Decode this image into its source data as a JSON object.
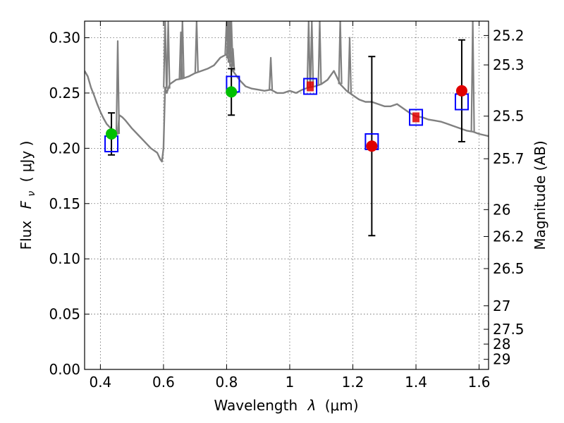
{
  "chart_data": {
    "type": "scatter",
    "title": "",
    "xlabel_text": "Wavelength",
    "xlabel_symbol": "λ",
    "xlabel_unit": "(μm)",
    "ylabel_text": "Flux",
    "ylabel_symbol": "F",
    "ylabel_subscript": "ν",
    "ylabel_unit": "( μJy )",
    "y2label": "Magnitude (AB)",
    "xlim": [
      0.35,
      1.63
    ],
    "ylim": [
      0.0,
      0.315
    ],
    "grid": true,
    "xticks": [
      0.4,
      0.6,
      0.8,
      1.0,
      1.2,
      1.4,
      1.6
    ],
    "xtick_labels": [
      "0.4",
      "0.6",
      "0.8",
      "1",
      "1.2",
      "1.4",
      "1.6"
    ],
    "yticks": [
      0.0,
      0.05,
      0.1,
      0.15,
      0.2,
      0.25,
      0.3
    ],
    "ytick_labels": [
      "0.00",
      "0.05",
      "0.10",
      "0.15",
      "0.20",
      "0.25",
      "0.30"
    ],
    "mag_ticks": [
      25.2,
      25.3,
      25.5,
      25.7,
      26,
      26.2,
      26.5,
      27,
      27.5,
      28,
      29
    ],
    "mag_tick_labels": [
      "25.2",
      "25.3",
      "25.5",
      "25.7",
      "26",
      "26.2",
      "26.5",
      "27",
      "27.5",
      "28",
      "29"
    ],
    "colors": {
      "model": "#808080",
      "model_point_box": "#0000ff",
      "detection": "#00c000",
      "low_significance": "#e00000",
      "errorbar": "#000000"
    },
    "series": [
      {
        "kind": "model_spectrum",
        "style": "line",
        "x": [
          0.35,
          0.36,
          0.37,
          0.38,
          0.39,
          0.4,
          0.41,
          0.42,
          0.43,
          0.44,
          0.45,
          0.455,
          0.46,
          0.47,
          0.48,
          0.5,
          0.52,
          0.54,
          0.56,
          0.58,
          0.59,
          0.595,
          0.6,
          0.605,
          0.61,
          0.62,
          0.64,
          0.66,
          0.68,
          0.7,
          0.72,
          0.74,
          0.76,
          0.78,
          0.8,
          0.82,
          0.84,
          0.86,
          0.88,
          0.9,
          0.92,
          0.94,
          0.96,
          0.98,
          1.0,
          1.02,
          1.04,
          1.06,
          1.08,
          1.1,
          1.12,
          1.14,
          1.16,
          1.18,
          1.2,
          1.22,
          1.24,
          1.26,
          1.28,
          1.3,
          1.32,
          1.34,
          1.36,
          1.38,
          1.4,
          1.42,
          1.44,
          1.46,
          1.48,
          1.5,
          1.52,
          1.54,
          1.56,
          1.58,
          1.6,
          1.63
        ],
        "y": [
          0.27,
          0.265,
          0.255,
          0.248,
          0.24,
          0.233,
          0.227,
          0.222,
          0.219,
          0.216,
          0.214,
          0.213,
          0.23,
          0.228,
          0.225,
          0.218,
          0.212,
          0.206,
          0.2,
          0.196,
          0.19,
          0.188,
          0.2,
          0.255,
          0.25,
          0.258,
          0.262,
          0.263,
          0.265,
          0.268,
          0.27,
          0.272,
          0.275,
          0.282,
          0.285,
          0.27,
          0.262,
          0.256,
          0.254,
          0.253,
          0.252,
          0.253,
          0.25,
          0.25,
          0.252,
          0.25,
          0.253,
          0.255,
          0.256,
          0.258,
          0.262,
          0.27,
          0.258,
          0.252,
          0.248,
          0.244,
          0.242,
          0.242,
          0.24,
          0.238,
          0.238,
          0.24,
          0.236,
          0.232,
          0.229,
          0.228,
          0.226,
          0.225,
          0.224,
          0.222,
          0.22,
          0.218,
          0.216,
          0.215,
          0.213,
          0.211
        ]
      },
      {
        "kind": "model_spectrum_emission_lines",
        "style": "spikes",
        "x": [
          0.455,
          0.605,
          0.615,
          0.655,
          0.66,
          0.705,
          0.8,
          0.805,
          0.81,
          0.815,
          0.82,
          0.94,
          1.06,
          1.07,
          1.095,
          1.16,
          1.19,
          1.58
        ],
        "peak": [
          0.297,
          0.315,
          0.315,
          0.305,
          0.315,
          0.315,
          0.315,
          0.315,
          0.315,
          0.315,
          0.29,
          0.282,
          0.315,
          0.315,
          0.315,
          0.315,
          0.3,
          0.315
        ]
      },
      {
        "kind": "model_photometry",
        "style": "open_square",
        "x": [
          0.435,
          0.82,
          1.065,
          1.26,
          1.4,
          1.545
        ],
        "y": [
          0.204,
          0.258,
          0.256,
          0.206,
          0.228,
          0.242
        ]
      },
      {
        "kind": "observed_detections",
        "style": "filled_circle",
        "x": [
          0.435,
          0.815
        ],
        "y": [
          0.213,
          0.251
        ],
        "yerr_low": [
          0.019,
          0.021
        ],
        "yerr_high": [
          0.019,
          0.021
        ]
      },
      {
        "kind": "observed_low_significance",
        "style": "filled_circle",
        "x": [
          1.26,
          1.545
        ],
        "y": [
          0.202,
          0.252
        ],
        "yerr_low": [
          0.081,
          0.046
        ],
        "yerr_high": [
          0.081,
          0.046
        ]
      },
      {
        "kind": "observed_small_markers",
        "style": "small_filled_square",
        "x": [
          1.065,
          1.4
        ],
        "y": [
          0.256,
          0.228
        ]
      }
    ]
  }
}
